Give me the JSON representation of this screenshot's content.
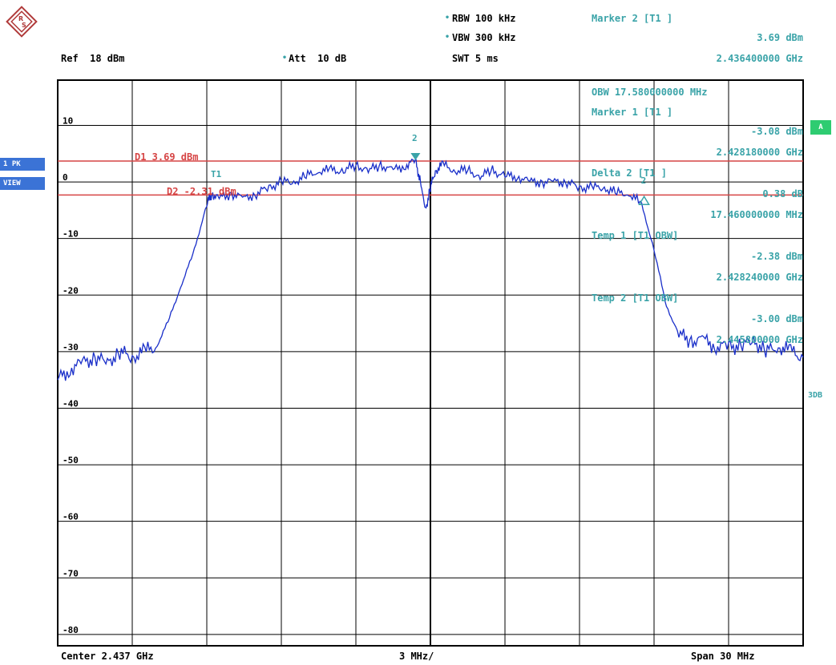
{
  "header": {
    "ref": "Ref  18 dBm",
    "att": "Att  10 dB",
    "rbw": "RBW 100 kHz",
    "vbw": "VBW 300 kHz",
    "swt": "SWT 5 ms",
    "marker2_title": "Marker 2 [T1 ]",
    "marker2_level": "3.69 dBm",
    "marker2_freq": "2.436400000 GHz"
  },
  "info_panel": [
    "OBW 17.580000000 MHz",
    "Marker 1 [T1 ]",
    "-3.08 dBm",
    "2.428180000 GHz",
    "Delta 2 [T1 ]",
    "0.38 dB",
    "17.460000000 MHz",
    "Temp 1 [T1 OBW]",
    "-2.38 dBm",
    "2.428240000 GHz",
    "Temp 2 [T1 OBW]",
    "-3.00 dBm",
    "2.445800000 GHz"
  ],
  "display_lines": {
    "d1": {
      "label": "D1 3.69 dBm",
      "value": 3.69
    },
    "d2": {
      "label": "D2 -2.31 dBm",
      "value": -2.31
    }
  },
  "markers": {
    "t1_label": "T1",
    "m2_label": "2",
    "delta_label": "2"
  },
  "side": {
    "pk_badge": "1 PK",
    "view_badge": "VIEW",
    "a_badge": "A",
    "right_label": "3DB"
  },
  "footer": {
    "center": "Center 2.437 GHz",
    "div": "3 MHz/",
    "span": "Span 30 MHz"
  },
  "colors": {
    "trace": "#1a2fc9",
    "display_line": "#d64545",
    "annotation": "#3aa3a8",
    "grid": "#000000"
  },
  "chart_data": {
    "type": "line",
    "xlabel": "",
    "ylabel": "",
    "xlim": [
      2.422,
      2.452
    ],
    "ylim": [
      -82,
      18
    ],
    "y_ticks": [
      10,
      0,
      -10,
      -20,
      -30,
      -40,
      -50,
      -60,
      -70,
      -80
    ],
    "grid": true,
    "series": [
      {
        "x": [
          2.422,
          2.4225,
          2.423,
          2.4235,
          2.424,
          2.4245,
          2.425,
          2.4255,
          2.426,
          2.4265,
          2.427,
          2.4275,
          2.428,
          2.4282,
          2.4285,
          2.429,
          2.4295,
          2.43,
          2.4305,
          2.431,
          2.4315,
          2.432,
          2.4325,
          2.433,
          2.4335,
          2.434,
          2.4345,
          2.435,
          2.4355,
          2.436,
          2.4364,
          2.4366,
          2.4368,
          2.437,
          2.4372,
          2.4375,
          2.438,
          2.4385,
          2.439,
          2.4395,
          2.44,
          2.4405,
          2.441,
          2.4415,
          2.442,
          2.4425,
          2.443,
          2.4435,
          2.444,
          2.4445,
          2.445,
          2.4455,
          2.446,
          2.4465,
          2.447,
          2.4475,
          2.448,
          2.4485,
          2.449,
          2.4495,
          2.45,
          2.4505,
          2.451,
          2.4515,
          2.452
        ],
        "y": [
          -35,
          -33,
          -32,
          -31,
          -32,
          -30,
          -31,
          -30,
          -29,
          -24,
          -18,
          -12,
          -4,
          -2,
          -3,
          -2,
          -3,
          -2,
          -1,
          0,
          0,
          1,
          2,
          2,
          2,
          3,
          2,
          3,
          2,
          3,
          3.7,
          0,
          -5,
          -1,
          2,
          3,
          2,
          2,
          1,
          2,
          1,
          1,
          0,
          0,
          0,
          0,
          -1,
          -1,
          -1,
          -2,
          -2,
          -4,
          -12,
          -22,
          -27,
          -28,
          -28,
          -29,
          -29,
          -29,
          -28,
          -30,
          -29,
          -30,
          -31
        ]
      }
    ]
  }
}
